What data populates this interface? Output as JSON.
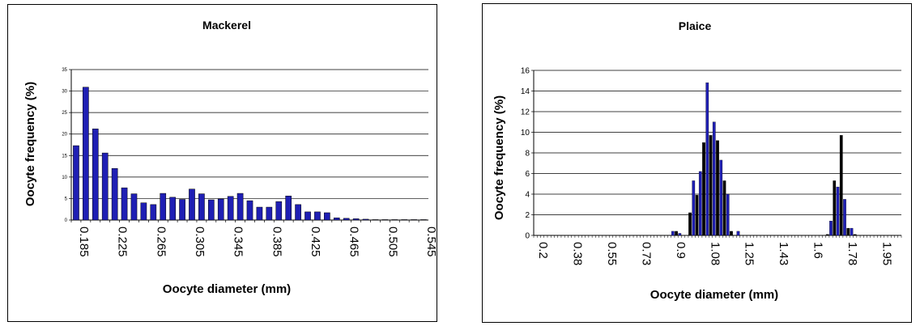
{
  "chart_data": [
    {
      "type": "bar",
      "title": "Mackerel",
      "xlabel": "Oocyte diameter (mm)",
      "ylabel": "Oocyte frequency (%)",
      "ylim": [
        0,
        35
      ],
      "yticks": [
        0,
        5,
        10,
        15,
        20,
        25,
        30,
        35
      ],
      "x_tick_labels": [
        "0.185",
        "0.225",
        "0.265",
        "0.305",
        "0.345",
        "0.385",
        "0.425",
        "0.465",
        "0.505",
        "0.545"
      ],
      "bar_color": "#1f1fb4",
      "grid": true,
      "categories": [
        "0.185",
        "0.195",
        "0.205",
        "0.215",
        "0.225",
        "0.235",
        "0.245",
        "0.255",
        "0.265",
        "0.275",
        "0.285",
        "0.295",
        "0.305",
        "0.315",
        "0.325",
        "0.335",
        "0.345",
        "0.355",
        "0.365",
        "0.375",
        "0.385",
        "0.395",
        "0.405",
        "0.415",
        "0.425",
        "0.435",
        "0.445",
        "0.455",
        "0.465",
        "0.475",
        "0.485",
        "0.495",
        "0.505",
        "0.515",
        "0.525",
        "0.535",
        "0.545"
      ],
      "values": [
        17.3,
        30.9,
        21.2,
        15.6,
        12.0,
        7.5,
        6.1,
        4.0,
        3.6,
        6.2,
        5.3,
        4.8,
        7.2,
        6.1,
        4.7,
        4.9,
        5.5,
        6.2,
        4.5,
        3.0,
        3.0,
        4.3,
        5.6,
        3.6,
        1.9,
        1.9,
        1.7,
        0.5,
        0.4,
        0.3,
        0.2,
        0.1,
        0.1,
        0.1,
        0.1,
        0.1,
        0.1
      ]
    },
    {
      "type": "bar",
      "title": "Plaice",
      "xlabel": "Oocyte diameter (mm)",
      "ylabel": "Oocyte frequency (%)",
      "ylim": [
        0,
        16
      ],
      "yticks": [
        0,
        2,
        4,
        6,
        8,
        10,
        12,
        14,
        16
      ],
      "x_tick_labels": [
        "0.2",
        "0.38",
        "0.55",
        "0.73",
        "0.9",
        "1.08",
        "1.25",
        "1.43",
        "1.6",
        "1.78",
        "1.95"
      ],
      "bar_colors": [
        "#1f1fb4",
        "#000000"
      ],
      "grid": true,
      "x_start": 0.2,
      "x_step": 0.0175,
      "bins": 107,
      "bars": [
        {
          "x": 0.9,
          "value": 0.4
        },
        {
          "x": 0.9175,
          "value": 0.4
        },
        {
          "x": 0.935,
          "value": 0.2
        },
        {
          "x": 0.9875,
          "value": 2.2
        },
        {
          "x": 1.005,
          "value": 5.3
        },
        {
          "x": 1.0225,
          "value": 3.9
        },
        {
          "x": 1.04,
          "value": 6.2
        },
        {
          "x": 1.0575,
          "value": 9.0
        },
        {
          "x": 1.075,
          "value": 14.8
        },
        {
          "x": 1.0925,
          "value": 9.7
        },
        {
          "x": 1.11,
          "value": 11.0
        },
        {
          "x": 1.1275,
          "value": 9.2
        },
        {
          "x": 1.145,
          "value": 7.3
        },
        {
          "x": 1.1625,
          "value": 5.3
        },
        {
          "x": 1.18,
          "value": 4.0
        },
        {
          "x": 1.1975,
          "value": 0.4
        },
        {
          "x": 1.2325,
          "value": 0.4
        },
        {
          "x": 1.6875,
          "value": 0.1
        },
        {
          "x": 1.705,
          "value": 1.4
        },
        {
          "x": 1.7225,
          "value": 5.3
        },
        {
          "x": 1.74,
          "value": 4.7
        },
        {
          "x": 1.7575,
          "value": 9.7
        },
        {
          "x": 1.775,
          "value": 3.5
        },
        {
          "x": 1.7925,
          "value": 0.7
        },
        {
          "x": 1.81,
          "value": 0.7
        },
        {
          "x": 1.8275,
          "value": 0.1
        }
      ]
    }
  ]
}
